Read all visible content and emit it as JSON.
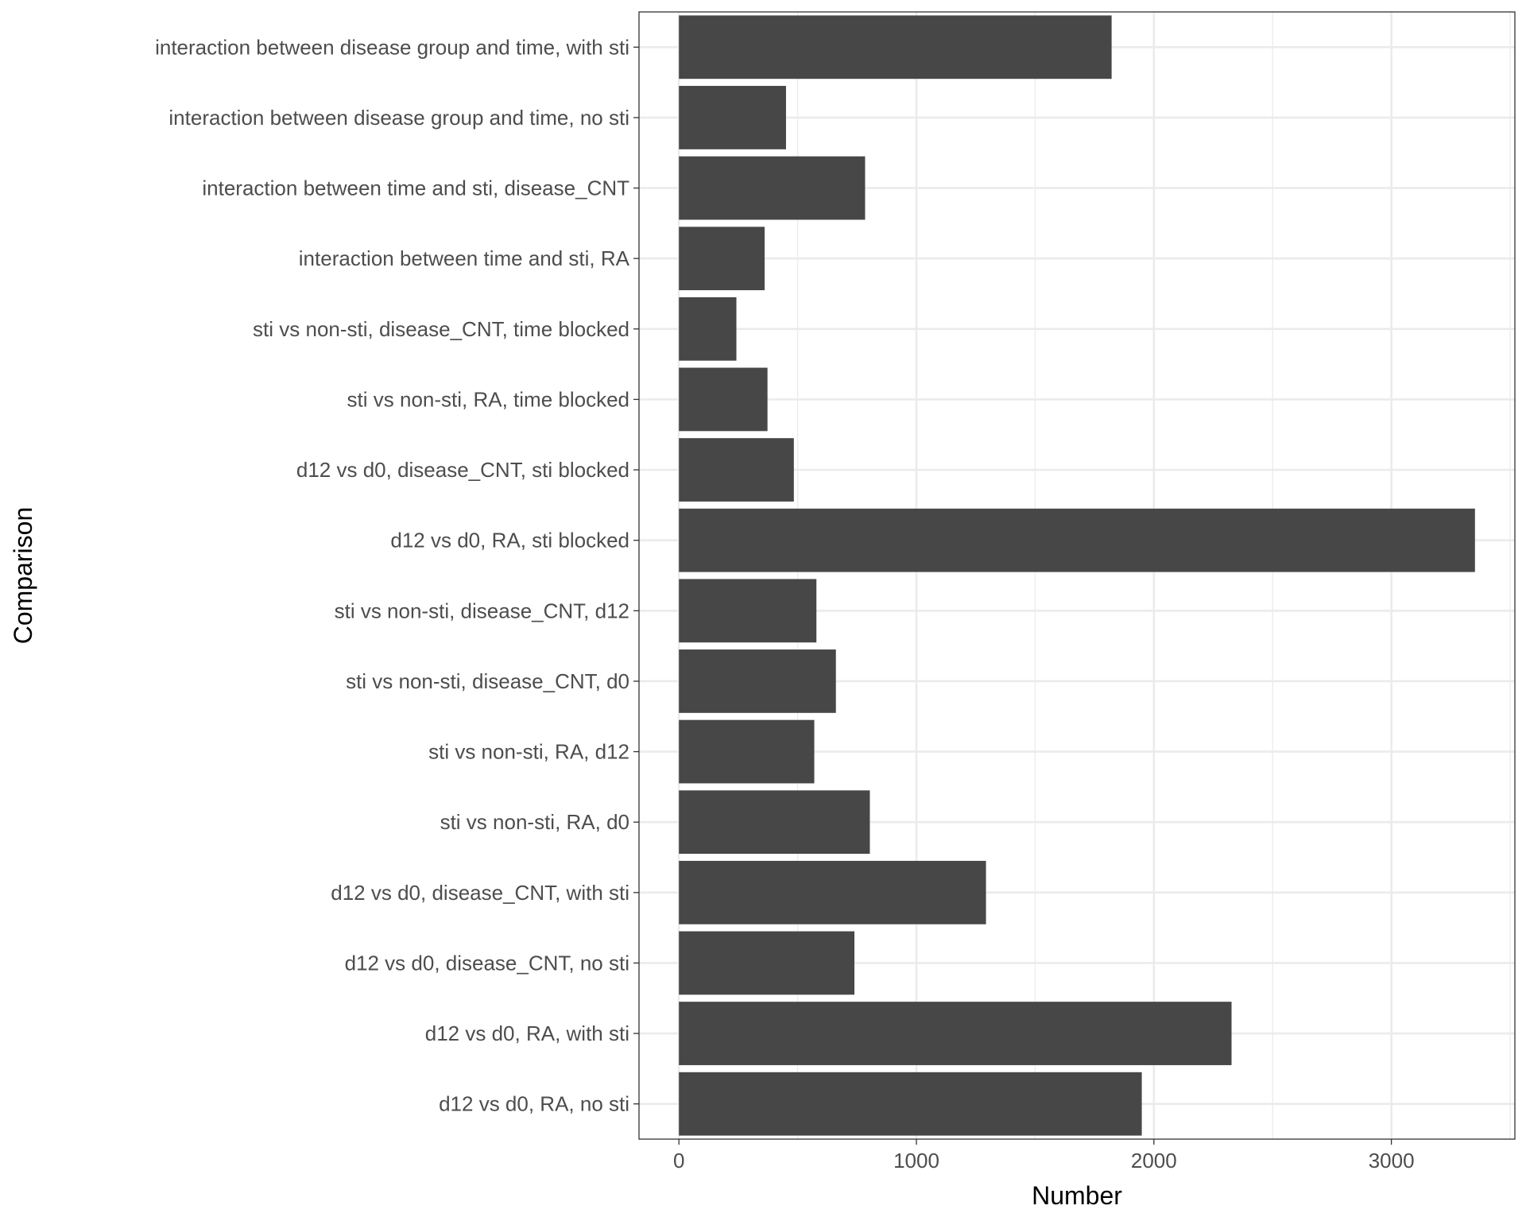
{
  "chart_data": {
    "type": "bar",
    "orientation": "horizontal",
    "title": "",
    "xlabel": "Number",
    "ylabel": "Comparison",
    "xlim": [
      -168,
      3520
    ],
    "xticks": [
      0,
      1000,
      2000,
      3000
    ],
    "xtick_labels": [
      "0",
      "1000",
      "2000",
      "3000"
    ],
    "grid": true,
    "bar_color": "#474747",
    "categories": [
      "interaction between disease group and time, with sti",
      "interaction between disease group and time, no sti",
      "interaction between time and sti, disease_CNT",
      "interaction between time and sti, RA",
      "sti vs non-sti, disease_CNT, time blocked",
      "sti vs non-sti, RA, time blocked",
      "d12 vs d0, disease_CNT, sti blocked",
      "d12 vs d0, RA, sti blocked",
      "sti vs non-sti, disease_CNT, d12",
      "sti vs non-sti, disease_CNT, d0",
      "sti vs non-sti, RA, d12",
      "sti vs non-sti, RA, d0",
      "d12 vs d0, disease_CNT, with sti",
      "d12 vs d0, disease_CNT, no sti",
      "d12 vs d0, RA, with sti",
      "d12 vs d0, RA, no sti"
    ],
    "values": [
      1822,
      451,
      784,
      361,
      242,
      373,
      484,
      3352,
      579,
      661,
      570,
      804,
      1293,
      739,
      2327,
      1949
    ]
  }
}
